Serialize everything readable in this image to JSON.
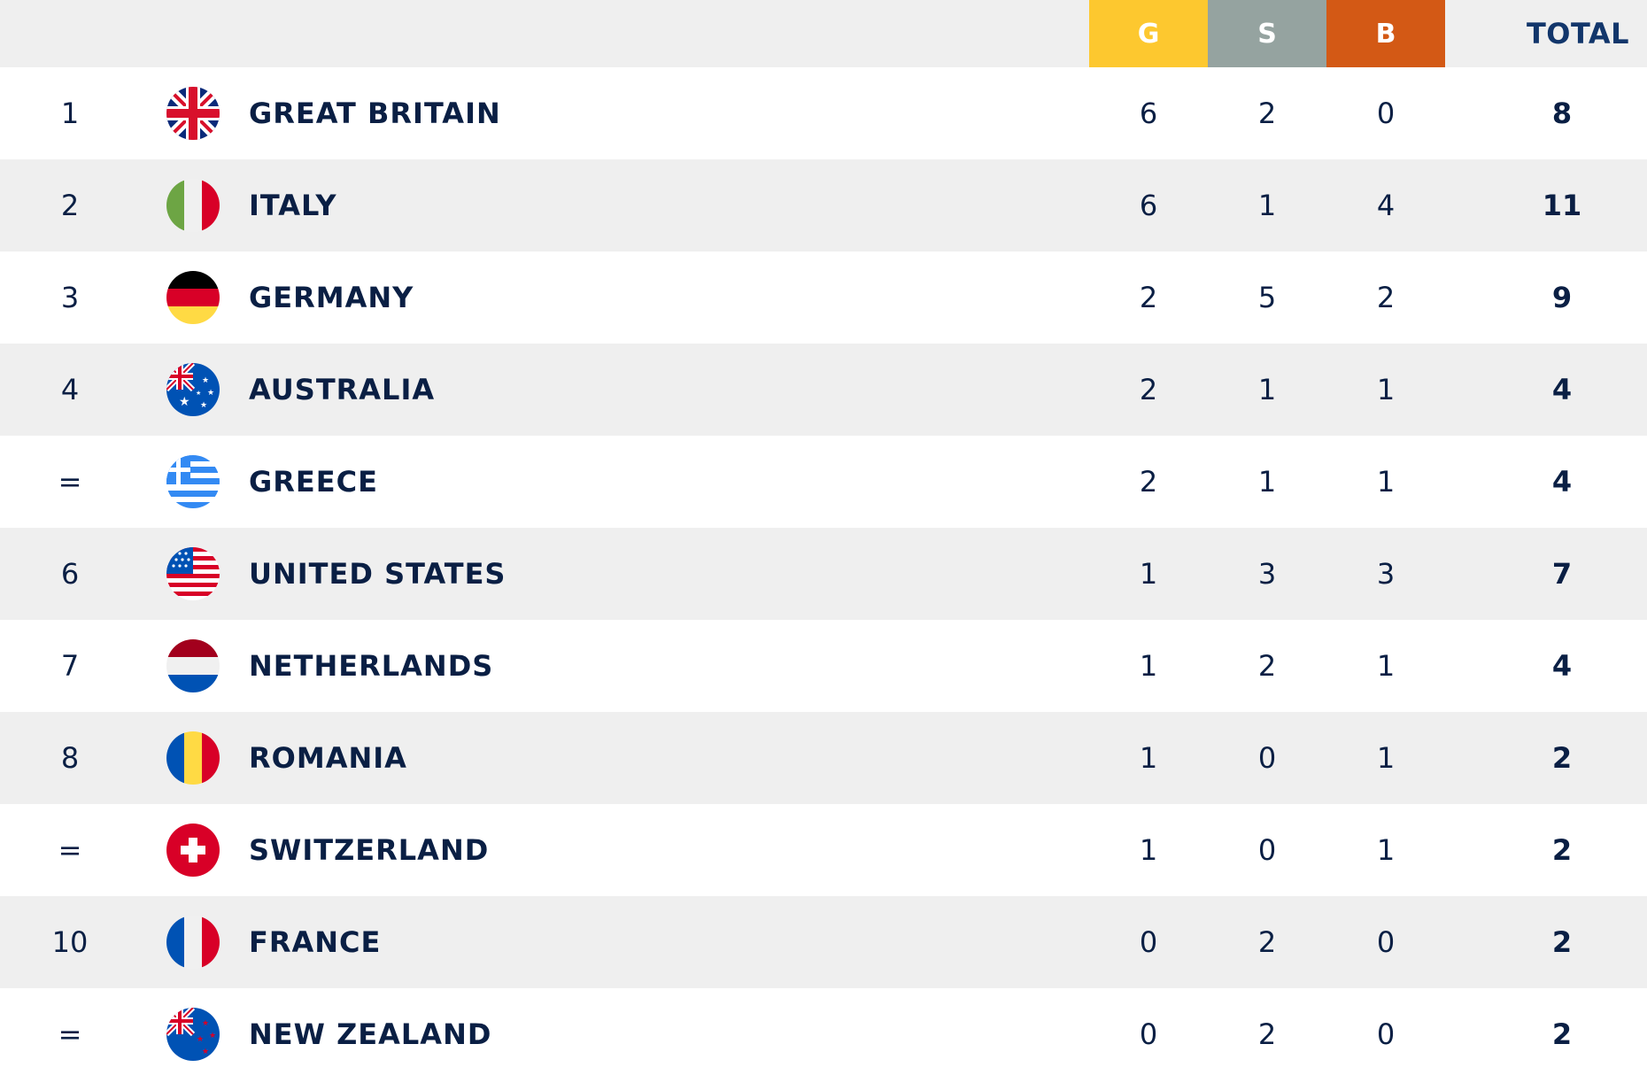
{
  "header": {
    "gold": "G",
    "silver": "S",
    "bronze": "B",
    "total": "TOTAL"
  },
  "colors": {
    "gold": "#fdc82f",
    "silver": "#95a3a0",
    "bronze": "#d35915",
    "header_bg": "#efefef",
    "text": "#0a1f44"
  },
  "rows": [
    {
      "rank": "1",
      "country": "GREAT BRITAIN",
      "flag": "flag-great-britain-icon",
      "gold": "6",
      "silver": "2",
      "bronze": "0",
      "total": "8"
    },
    {
      "rank": "2",
      "country": "ITALY",
      "flag": "flag-italy-icon",
      "gold": "6",
      "silver": "1",
      "bronze": "4",
      "total": "11"
    },
    {
      "rank": "3",
      "country": "GERMANY",
      "flag": "flag-germany-icon",
      "gold": "2",
      "silver": "5",
      "bronze": "2",
      "total": "9"
    },
    {
      "rank": "4",
      "country": "AUSTRALIA",
      "flag": "flag-australia-icon",
      "gold": "2",
      "silver": "1",
      "bronze": "1",
      "total": "4"
    },
    {
      "rank": "=",
      "country": "GREECE",
      "flag": "flag-greece-icon",
      "gold": "2",
      "silver": "1",
      "bronze": "1",
      "total": "4"
    },
    {
      "rank": "6",
      "country": "UNITED STATES",
      "flag": "flag-united-states-icon",
      "gold": "1",
      "silver": "3",
      "bronze": "3",
      "total": "7"
    },
    {
      "rank": "7",
      "country": "NETHERLANDS",
      "flag": "flag-netherlands-icon",
      "gold": "1",
      "silver": "2",
      "bronze": "1",
      "total": "4"
    },
    {
      "rank": "8",
      "country": "ROMANIA",
      "flag": "flag-romania-icon",
      "gold": "1",
      "silver": "0",
      "bronze": "1",
      "total": "2"
    },
    {
      "rank": "=",
      "country": "SWITZERLAND",
      "flag": "flag-switzerland-icon",
      "gold": "1",
      "silver": "0",
      "bronze": "1",
      "total": "2"
    },
    {
      "rank": "10",
      "country": "FRANCE",
      "flag": "flag-france-icon",
      "gold": "0",
      "silver": "2",
      "bronze": "0",
      "total": "2"
    },
    {
      "rank": "=",
      "country": "NEW ZEALAND",
      "flag": "flag-new-zealand-icon",
      "gold": "0",
      "silver": "2",
      "bronze": "0",
      "total": "2"
    }
  ]
}
